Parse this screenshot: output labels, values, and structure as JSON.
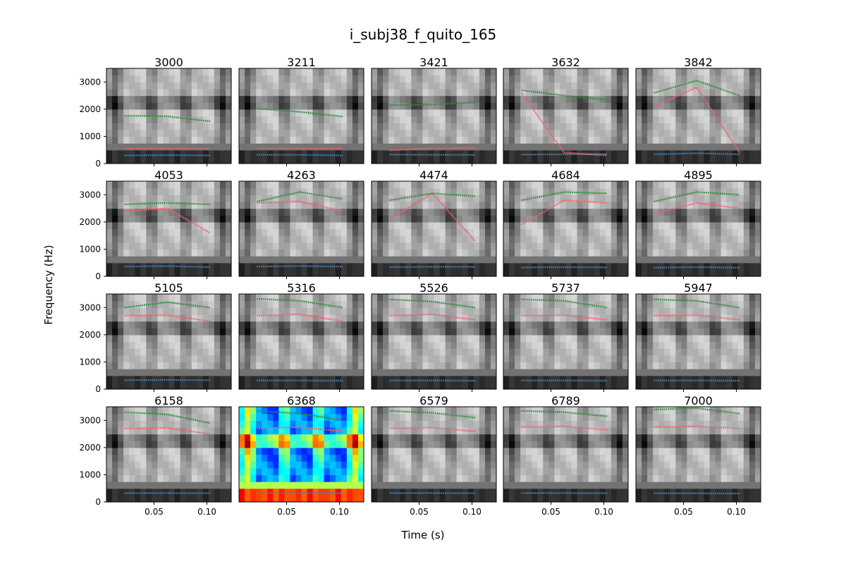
{
  "chart_data": {
    "type": "heatmap",
    "suptitle": "i_subj38_f_quito_165",
    "xlabel": "Time (s)",
    "ylabel": "Frequency (Hz)",
    "xlim": [
      0.005,
      0.123
    ],
    "ylim": [
      0,
      3500
    ],
    "xticks": [
      0.05,
      0.1
    ],
    "xtick_labels": [
      "0.05",
      "0.10"
    ],
    "yticks": [
      0,
      1000,
      2000,
      3000
    ],
    "ytick_labels": [
      "0",
      "1000",
      "2000",
      "3000"
    ],
    "grid": false,
    "series_colors": {
      "F1": "#4a7fb5",
      "F2": "#f06070",
      "F3": "#2e8b3a"
    },
    "colormaps": {
      "default": "gray",
      "highlighted": "jet"
    },
    "highlighted_panel": "6368",
    "track_time_range": [
      0.022,
      0.103
    ],
    "panels": [
      {
        "title": "3000",
        "F1": [
          300,
          310,
          300
        ],
        "F2": [
          560,
          560,
          550
        ],
        "F3": [
          1760,
          1740,
          1550
        ]
      },
      {
        "title": "3211",
        "F1": [
          320,
          320,
          300
        ],
        "F2": [
          560,
          560,
          560
        ],
        "F3": [
          2020,
          1900,
          1730
        ]
      },
      {
        "title": "3421",
        "F1": [
          330,
          320,
          320
        ],
        "F2": [
          490,
          560,
          570
        ],
        "F3": [
          2150,
          2170,
          2250
        ]
      },
      {
        "title": "3632",
        "F1": [
          330,
          340,
          350
        ],
        "F2": [
          2600,
          400,
          300
        ],
        "F3": [
          2700,
          2500,
          2350
        ]
      },
      {
        "title": "3842",
        "F1": [
          340,
          380,
          340
        ],
        "F2": [
          2100,
          2800,
          400
        ],
        "F3": [
          2600,
          3050,
          2500
        ]
      },
      {
        "title": "4053",
        "F1": [
          360,
          380,
          340
        ],
        "F2": [
          2400,
          2500,
          1600
        ],
        "F3": [
          2650,
          2700,
          2650
        ]
      },
      {
        "title": "4263",
        "F1": [
          360,
          380,
          360
        ],
        "F2": [
          2700,
          2750,
          2400
        ],
        "F3": [
          2750,
          3100,
          2850
        ]
      },
      {
        "title": "4474",
        "F1": [
          340,
          350,
          350
        ],
        "F2": [
          2100,
          3050,
          1300
        ],
        "F3": [
          2800,
          3050,
          2950
        ]
      },
      {
        "title": "4684",
        "F1": [
          330,
          340,
          330
        ],
        "F2": [
          1900,
          2800,
          2700
        ],
        "F3": [
          2800,
          3100,
          3050
        ]
      },
      {
        "title": "4895",
        "F1": [
          320,
          340,
          320
        ],
        "F2": [
          2300,
          2700,
          2500
        ],
        "F3": [
          2750,
          3100,
          3000
        ]
      },
      {
        "title": "5105",
        "F1": [
          330,
          340,
          330
        ],
        "F2": [
          2700,
          2720,
          2500
        ],
        "F3": [
          3000,
          3200,
          3000
        ]
      },
      {
        "title": "5316",
        "F1": [
          320,
          320,
          310
        ],
        "F2": [
          2700,
          2750,
          2500
        ],
        "F3": [
          3320,
          3250,
          3000
        ]
      },
      {
        "title": "5526",
        "F1": [
          320,
          320,
          310
        ],
        "F2": [
          2700,
          2750,
          2550
        ],
        "F3": [
          3300,
          3220,
          3000
        ]
      },
      {
        "title": "5737",
        "F1": [
          320,
          320,
          310
        ],
        "F2": [
          2700,
          2720,
          2550
        ],
        "F3": [
          3300,
          3250,
          3000
        ]
      },
      {
        "title": "5947",
        "F1": [
          320,
          320,
          310
        ],
        "F2": [
          2700,
          2720,
          2550
        ],
        "F3": [
          3300,
          3250,
          3000
        ]
      },
      {
        "title": "6158",
        "F1": [
          330,
          330,
          320
        ],
        "F2": [
          2700,
          2720,
          2500
        ],
        "F3": [
          3300,
          3220,
          2900
        ]
      },
      {
        "title": "6368",
        "F1": [
          330,
          330,
          320
        ],
        "F2": [
          2700,
          2750,
          2600
        ],
        "F3": [
          3350,
          3250,
          3000
        ]
      },
      {
        "title": "6579",
        "F1": [
          330,
          330,
          320
        ],
        "F2": [
          2700,
          2730,
          2600
        ],
        "F3": [
          3350,
          3280,
          3100
        ]
      },
      {
        "title": "6789",
        "F1": [
          330,
          330,
          320
        ],
        "F2": [
          2750,
          2780,
          2650
        ],
        "F3": [
          3350,
          3300,
          3150
        ]
      },
      {
        "title": "7000",
        "F1": [
          320,
          320,
          310
        ],
        "F2": [
          2750,
          2780,
          2700
        ],
        "F3": [
          3400,
          3450,
          3250
        ]
      }
    ]
  }
}
